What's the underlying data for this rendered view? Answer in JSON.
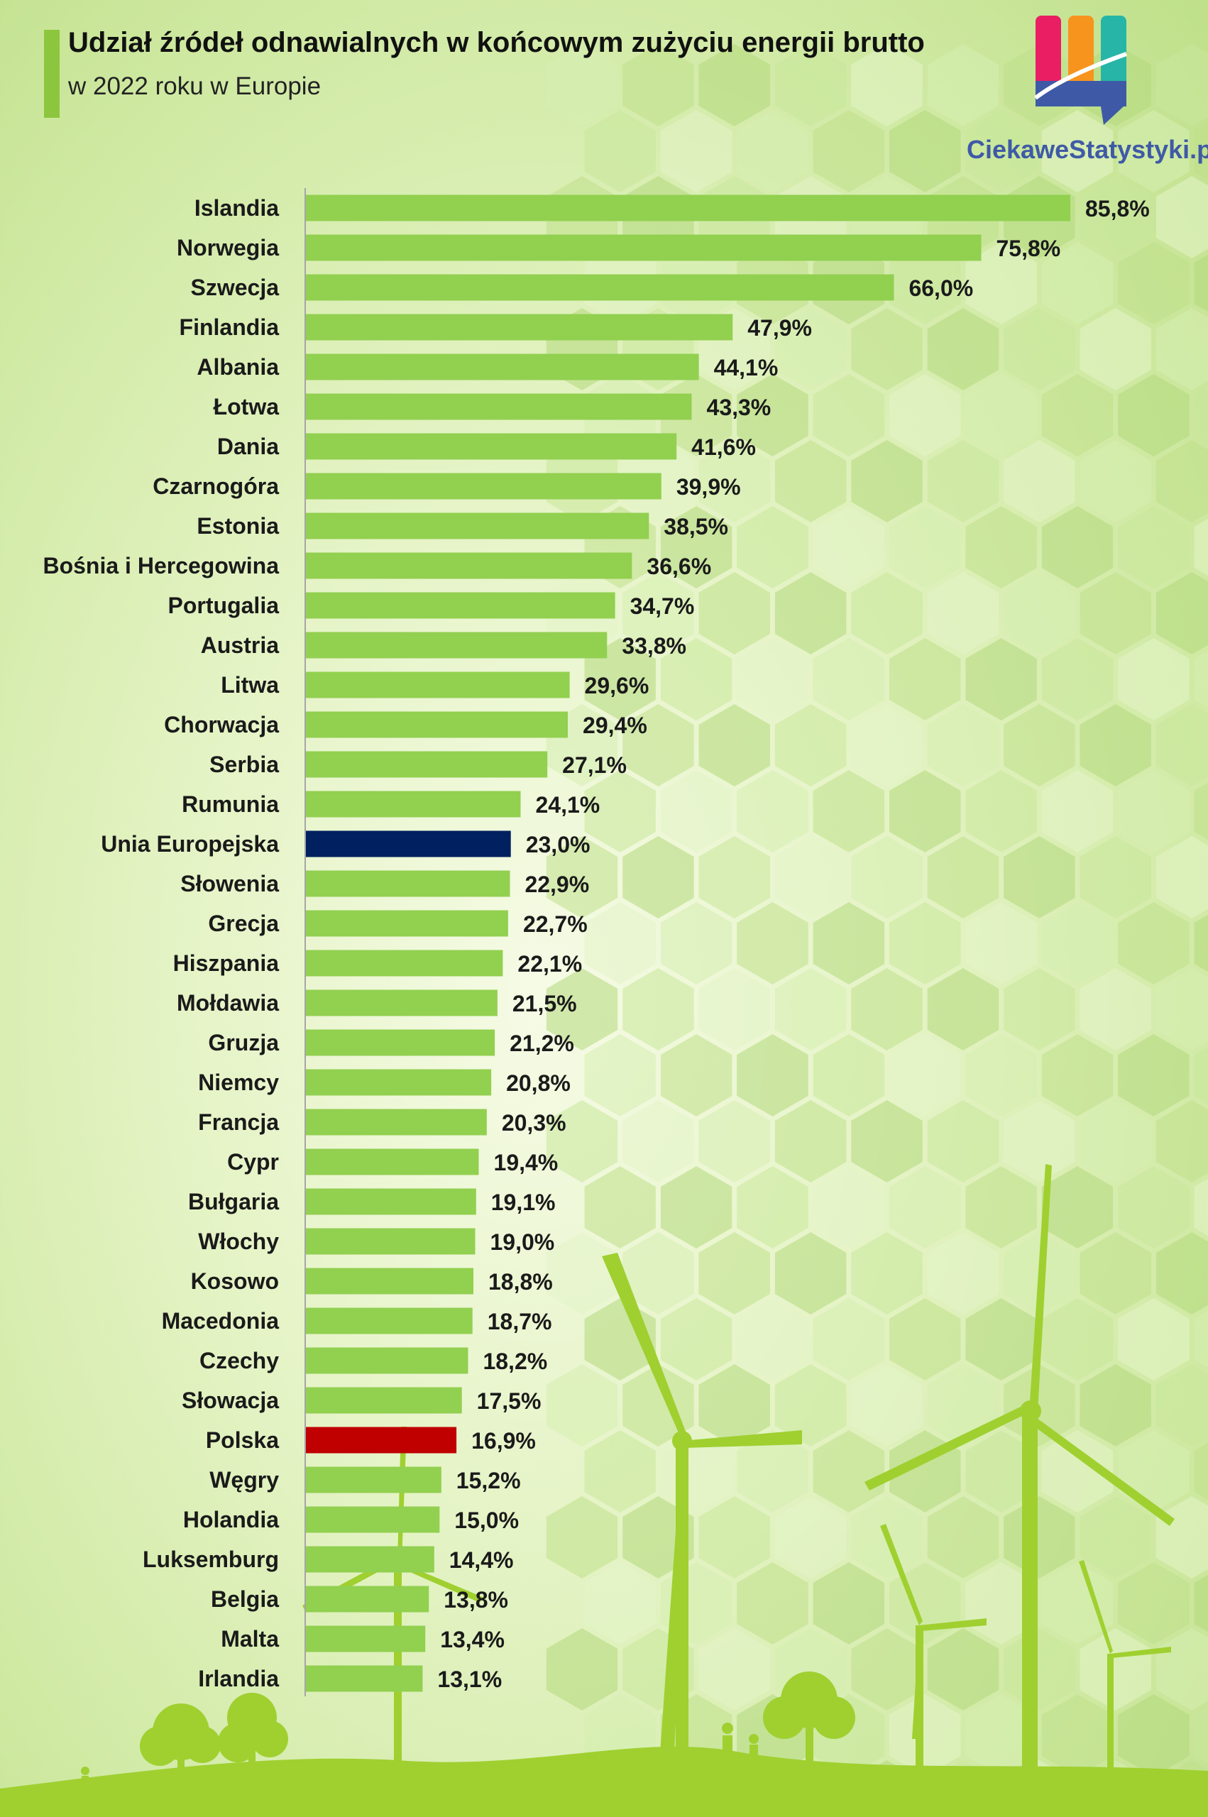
{
  "header": {
    "title": "Udział źródeł odnawialnych w końcowym zużyciu energii brutto",
    "subtitle": "w 2022 roku w Europie",
    "logo_text": "CiekaweStatystyki.pl"
  },
  "colors": {
    "bar_default": "#92d050",
    "bar_eu": "#002060",
    "bar_poland": "#c00000",
    "axis_line": "#a6a6a6",
    "accent": "#8cc63f"
  },
  "chart_data": {
    "type": "bar",
    "orientation": "horizontal",
    "title": "Udział źródeł odnawialnych w końcowym zużyciu energii brutto",
    "subtitle": "w 2022 roku w Europie",
    "categories": [
      "Islandia",
      "Norwegia",
      "Szwecja",
      "Finlandia",
      "Albania",
      "Łotwa",
      "Dania",
      "Czarnogóra",
      "Estonia",
      "Bośnia i Hercegowina",
      "Portugalia",
      "Austria",
      "Litwa",
      "Chorwacja",
      "Serbia",
      "Rumunia",
      "Unia Europejska",
      "Słowenia",
      "Grecja",
      "Hiszpania",
      "Mołdawia",
      "Gruzja",
      "Niemcy",
      "Francja",
      "Cypr",
      "Bułgaria",
      "Włochy",
      "Kosowo",
      "Macedonia",
      "Czechy",
      "Słowacja",
      "Polska",
      "Węgry",
      "Holandia",
      "Luksemburg",
      "Belgia",
      "Malta",
      "Irlandia"
    ],
    "values": [
      85.8,
      75.8,
      66.0,
      47.9,
      44.1,
      43.3,
      41.6,
      39.9,
      38.5,
      36.6,
      34.7,
      33.8,
      29.6,
      29.4,
      27.1,
      24.1,
      23.0,
      22.9,
      22.7,
      22.1,
      21.5,
      21.2,
      20.8,
      20.3,
      19.4,
      19.1,
      19.0,
      18.8,
      18.7,
      18.2,
      17.5,
      16.9,
      15.2,
      15.0,
      14.4,
      13.8,
      13.4,
      13.1
    ],
    "value_labels": [
      "85,8%",
      "75,8%",
      "66,0%",
      "47,9%",
      "44,1%",
      "43,3%",
      "41,6%",
      "39,9%",
      "38,5%",
      "36,6%",
      "34,7%",
      "33,8%",
      "29,6%",
      "29,4%",
      "27,1%",
      "24,1%",
      "23,0%",
      "22,9%",
      "22,7%",
      "22,1%",
      "21,5%",
      "21,2%",
      "20,8%",
      "20,3%",
      "19,4%",
      "19,1%",
      "19,0%",
      "18,8%",
      "18,7%",
      "18,2%",
      "17,5%",
      "16,9%",
      "15,2%",
      "15,0%",
      "14,4%",
      "13,8%",
      "13,4%",
      "13,1%"
    ],
    "highlights": {
      "Unia Europejska": "#002060",
      "Polska": "#c00000"
    },
    "xlim": [
      0,
      85.8
    ],
    "grid": false,
    "legend": "none"
  }
}
